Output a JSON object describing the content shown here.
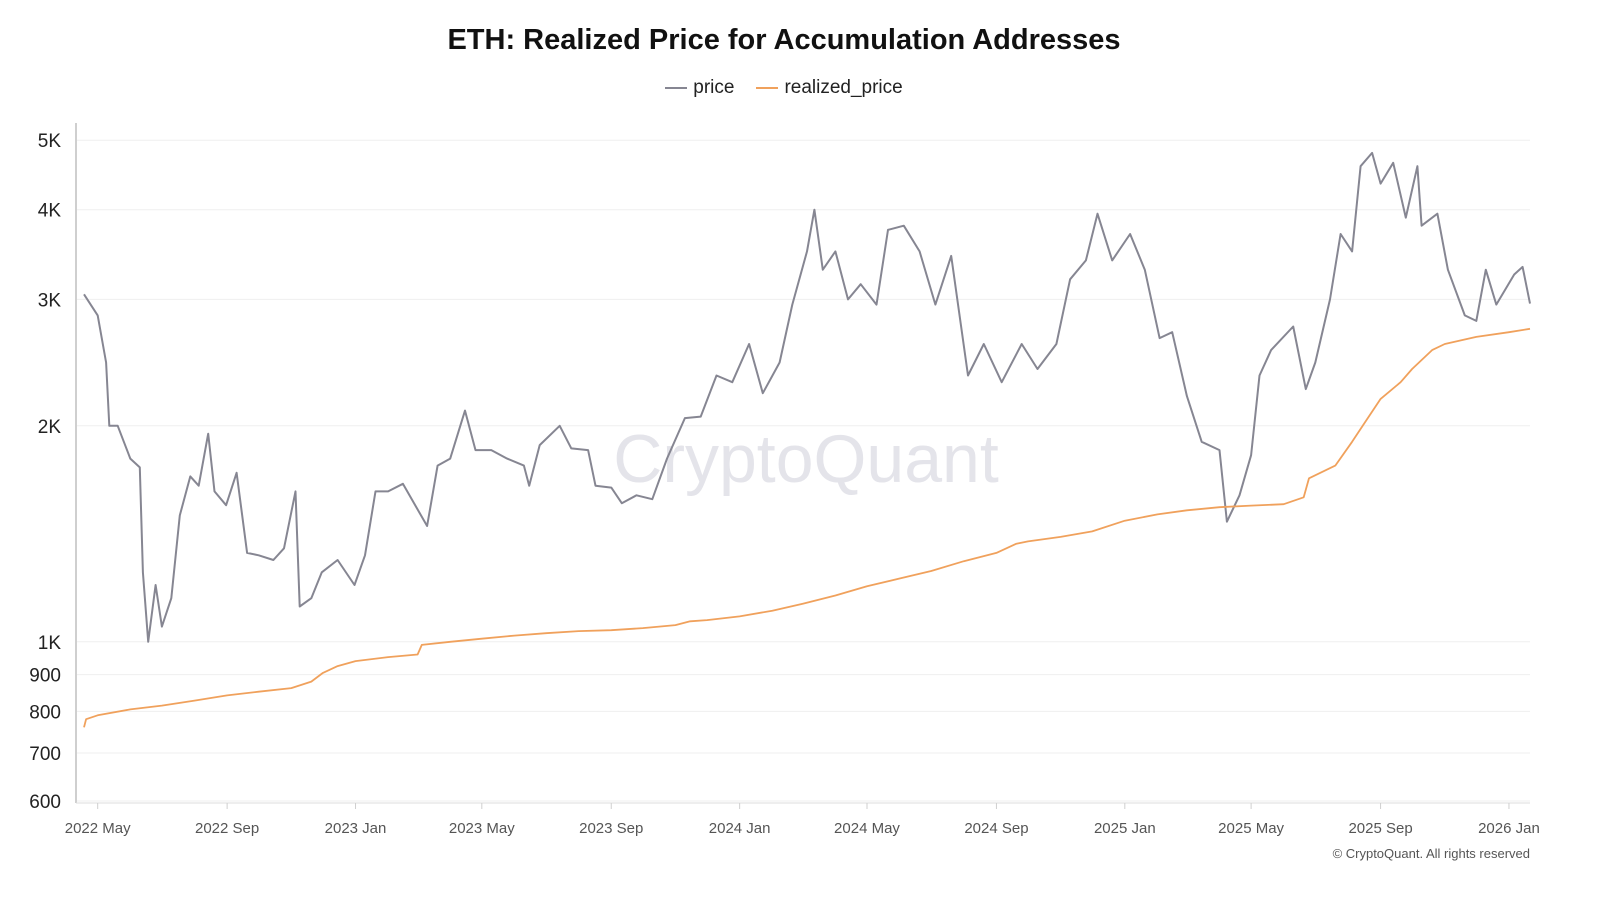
{
  "chart_data": {
    "type": "line",
    "title": "ETH: Realized Price for Accumulation Addresses",
    "xlabel": "",
    "ylabel": "",
    "y_scale": "log",
    "ylim": [
      600,
      5250
    ],
    "xlim": [
      "2022-04-18",
      "2026-01-21"
    ],
    "grid": true,
    "legend_position": "top-center",
    "y_ticks": [
      {
        "value": 600,
        "label": "600"
      },
      {
        "value": 700,
        "label": "700"
      },
      {
        "value": 800,
        "label": "800"
      },
      {
        "value": 900,
        "label": "900"
      },
      {
        "value": 1000,
        "label": "1K"
      },
      {
        "value": 2000,
        "label": "2K"
      },
      {
        "value": 3000,
        "label": "3K"
      },
      {
        "value": 4000,
        "label": "4K"
      },
      {
        "value": 5000,
        "label": "5K"
      }
    ],
    "x_ticks": [
      {
        "date": "2022-05-01",
        "label": "2022 May"
      },
      {
        "date": "2022-09-01",
        "label": "2022 Sep"
      },
      {
        "date": "2023-01-01",
        "label": "2023 Jan"
      },
      {
        "date": "2023-05-01",
        "label": "2023 May"
      },
      {
        "date": "2023-09-01",
        "label": "2023 Sep"
      },
      {
        "date": "2024-01-01",
        "label": "2024 Jan"
      },
      {
        "date": "2024-05-01",
        "label": "2024 May"
      },
      {
        "date": "2024-09-01",
        "label": "2024 Sep"
      },
      {
        "date": "2025-01-01",
        "label": "2025 Jan"
      },
      {
        "date": "2025-05-01",
        "label": "2025 May"
      },
      {
        "date": "2025-09-01",
        "label": "2025 Sep"
      },
      {
        "date": "2026-01-01",
        "label": "2026 Jan"
      }
    ],
    "series": [
      {
        "name": "price",
        "color": "#868692",
        "points": [
          [
            "2022-04-18",
            3050
          ],
          [
            "2022-05-01",
            2850
          ],
          [
            "2022-05-09",
            2450
          ],
          [
            "2022-05-12",
            2000
          ],
          [
            "2022-05-20",
            2000
          ],
          [
            "2022-06-01",
            1800
          ],
          [
            "2022-06-10",
            1750
          ],
          [
            "2022-06-13",
            1250
          ],
          [
            "2022-06-18",
            1000
          ],
          [
            "2022-06-25",
            1200
          ],
          [
            "2022-07-01",
            1050
          ],
          [
            "2022-07-10",
            1150
          ],
          [
            "2022-07-18",
            1500
          ],
          [
            "2022-07-28",
            1700
          ],
          [
            "2022-08-05",
            1650
          ],
          [
            "2022-08-14",
            1950
          ],
          [
            "2022-08-20",
            1620
          ],
          [
            "2022-08-31",
            1550
          ],
          [
            "2022-09-10",
            1720
          ],
          [
            "2022-09-20",
            1330
          ],
          [
            "2022-10-01",
            1320
          ],
          [
            "2022-10-15",
            1300
          ],
          [
            "2022-10-25",
            1350
          ],
          [
            "2022-11-05",
            1620
          ],
          [
            "2022-11-09",
            1120
          ],
          [
            "2022-11-20",
            1150
          ],
          [
            "2022-11-30",
            1250
          ],
          [
            "2022-12-15",
            1300
          ],
          [
            "2022-12-31",
            1200
          ],
          [
            "2023-01-10",
            1320
          ],
          [
            "2023-01-20",
            1620
          ],
          [
            "2023-02-01",
            1620
          ],
          [
            "2023-02-15",
            1660
          ],
          [
            "2023-03-10",
            1450
          ],
          [
            "2023-03-20",
            1760
          ],
          [
            "2023-04-01",
            1800
          ],
          [
            "2023-04-15",
            2100
          ],
          [
            "2023-04-25",
            1850
          ],
          [
            "2023-05-10",
            1850
          ],
          [
            "2023-05-25",
            1800
          ],
          [
            "2023-06-10",
            1760
          ],
          [
            "2023-06-15",
            1650
          ],
          [
            "2023-06-25",
            1880
          ],
          [
            "2023-07-14",
            2000
          ],
          [
            "2023-07-25",
            1860
          ],
          [
            "2023-08-10",
            1850
          ],
          [
            "2023-08-17",
            1650
          ],
          [
            "2023-09-01",
            1640
          ],
          [
            "2023-09-11",
            1560
          ],
          [
            "2023-09-25",
            1600
          ],
          [
            "2023-10-10",
            1580
          ],
          [
            "2023-10-24",
            1800
          ],
          [
            "2023-11-10",
            2050
          ],
          [
            "2023-11-25",
            2060
          ],
          [
            "2023-12-10",
            2350
          ],
          [
            "2023-12-25",
            2300
          ],
          [
            "2024-01-10",
            2600
          ],
          [
            "2024-01-23",
            2220
          ],
          [
            "2024-02-08",
            2450
          ],
          [
            "2024-02-20",
            2950
          ],
          [
            "2024-03-05",
            3500
          ],
          [
            "2024-03-12",
            4000
          ],
          [
            "2024-03-20",
            3300
          ],
          [
            "2024-04-01",
            3500
          ],
          [
            "2024-04-13",
            3000
          ],
          [
            "2024-04-25",
            3150
          ],
          [
            "2024-05-10",
            2950
          ],
          [
            "2024-05-21",
            3750
          ],
          [
            "2024-06-05",
            3800
          ],
          [
            "2024-06-20",
            3500
          ],
          [
            "2024-07-05",
            2950
          ],
          [
            "2024-07-20",
            3450
          ],
          [
            "2024-08-05",
            2350
          ],
          [
            "2024-08-20",
            2600
          ],
          [
            "2024-09-06",
            2300
          ],
          [
            "2024-09-25",
            2600
          ],
          [
            "2024-10-10",
            2400
          ],
          [
            "2024-10-28",
            2600
          ],
          [
            "2024-11-10",
            3200
          ],
          [
            "2024-11-25",
            3400
          ],
          [
            "2024-12-06",
            3950
          ],
          [
            "2024-12-20",
            3400
          ],
          [
            "2025-01-06",
            3700
          ],
          [
            "2025-01-20",
            3300
          ],
          [
            "2025-02-03",
            2650
          ],
          [
            "2025-02-15",
            2700
          ],
          [
            "2025-03-01",
            2200
          ],
          [
            "2025-03-15",
            1900
          ],
          [
            "2025-04-01",
            1850
          ],
          [
            "2025-04-08",
            1470
          ],
          [
            "2025-04-20",
            1600
          ],
          [
            "2025-05-01",
            1820
          ],
          [
            "2025-05-09",
            2350
          ],
          [
            "2025-05-20",
            2550
          ],
          [
            "2025-06-10",
            2750
          ],
          [
            "2025-06-22",
            2250
          ],
          [
            "2025-07-01",
            2450
          ],
          [
            "2025-07-15",
            3000
          ],
          [
            "2025-07-25",
            3700
          ],
          [
            "2025-08-05",
            3500
          ],
          [
            "2025-08-13",
            4600
          ],
          [
            "2025-08-24",
            4800
          ],
          [
            "2025-09-01",
            4350
          ],
          [
            "2025-09-13",
            4650
          ],
          [
            "2025-09-25",
            3900
          ],
          [
            "2025-10-06",
            4600
          ],
          [
            "2025-10-10",
            3800
          ],
          [
            "2025-10-25",
            3950
          ],
          [
            "2025-11-04",
            3300
          ],
          [
            "2025-11-20",
            2850
          ],
          [
            "2025-12-01",
            2800
          ],
          [
            "2025-12-10",
            3300
          ],
          [
            "2025-12-20",
            2950
          ],
          [
            "2026-01-06",
            3250
          ],
          [
            "2026-01-14",
            3330
          ],
          [
            "2026-01-21",
            2960
          ]
        ]
      },
      {
        "name": "realized_price",
        "color": "#f0a15c",
        "points": [
          [
            "2022-04-18",
            760
          ],
          [
            "2022-04-20",
            780
          ],
          [
            "2022-05-01",
            790
          ],
          [
            "2022-06-01",
            805
          ],
          [
            "2022-07-01",
            815
          ],
          [
            "2022-08-01",
            828
          ],
          [
            "2022-09-01",
            842
          ],
          [
            "2022-10-01",
            852
          ],
          [
            "2022-11-01",
            862
          ],
          [
            "2022-11-20",
            880
          ],
          [
            "2022-12-01",
            905
          ],
          [
            "2022-12-15",
            925
          ],
          [
            "2023-01-01",
            940
          ],
          [
            "2023-02-01",
            952
          ],
          [
            "2023-03-01",
            960
          ],
          [
            "2023-03-05",
            990
          ],
          [
            "2023-04-01",
            1000
          ],
          [
            "2023-05-01",
            1010
          ],
          [
            "2023-06-01",
            1020
          ],
          [
            "2023-07-01",
            1028
          ],
          [
            "2023-08-01",
            1035
          ],
          [
            "2023-09-01",
            1038
          ],
          [
            "2023-10-01",
            1045
          ],
          [
            "2023-11-01",
            1055
          ],
          [
            "2023-11-15",
            1068
          ],
          [
            "2023-12-01",
            1072
          ],
          [
            "2024-01-01",
            1085
          ],
          [
            "2024-02-01",
            1105
          ],
          [
            "2024-03-01",
            1130
          ],
          [
            "2024-04-01",
            1160
          ],
          [
            "2024-05-01",
            1195
          ],
          [
            "2024-06-01",
            1225
          ],
          [
            "2024-07-01",
            1255
          ],
          [
            "2024-08-01",
            1295
          ],
          [
            "2024-09-01",
            1330
          ],
          [
            "2024-09-20",
            1370
          ],
          [
            "2024-10-01",
            1380
          ],
          [
            "2024-11-01",
            1400
          ],
          [
            "2024-12-01",
            1425
          ],
          [
            "2025-01-01",
            1475
          ],
          [
            "2025-02-01",
            1505
          ],
          [
            "2025-03-01",
            1525
          ],
          [
            "2025-04-01",
            1540
          ],
          [
            "2025-05-01",
            1548
          ],
          [
            "2025-06-01",
            1555
          ],
          [
            "2025-06-20",
            1590
          ],
          [
            "2025-06-25",
            1690
          ],
          [
            "2025-07-20",
            1760
          ],
          [
            "2025-08-05",
            1900
          ],
          [
            "2025-08-15",
            2000
          ],
          [
            "2025-09-01",
            2180
          ],
          [
            "2025-09-20",
            2300
          ],
          [
            "2025-10-01",
            2400
          ],
          [
            "2025-10-20",
            2550
          ],
          [
            "2025-11-01",
            2600
          ],
          [
            "2025-12-01",
            2660
          ],
          [
            "2026-01-01",
            2700
          ],
          [
            "2026-01-21",
            2730
          ]
        ]
      }
    ]
  },
  "watermark": "CryptoQuant",
  "footer": "© CryptoQuant. All rights reserved"
}
